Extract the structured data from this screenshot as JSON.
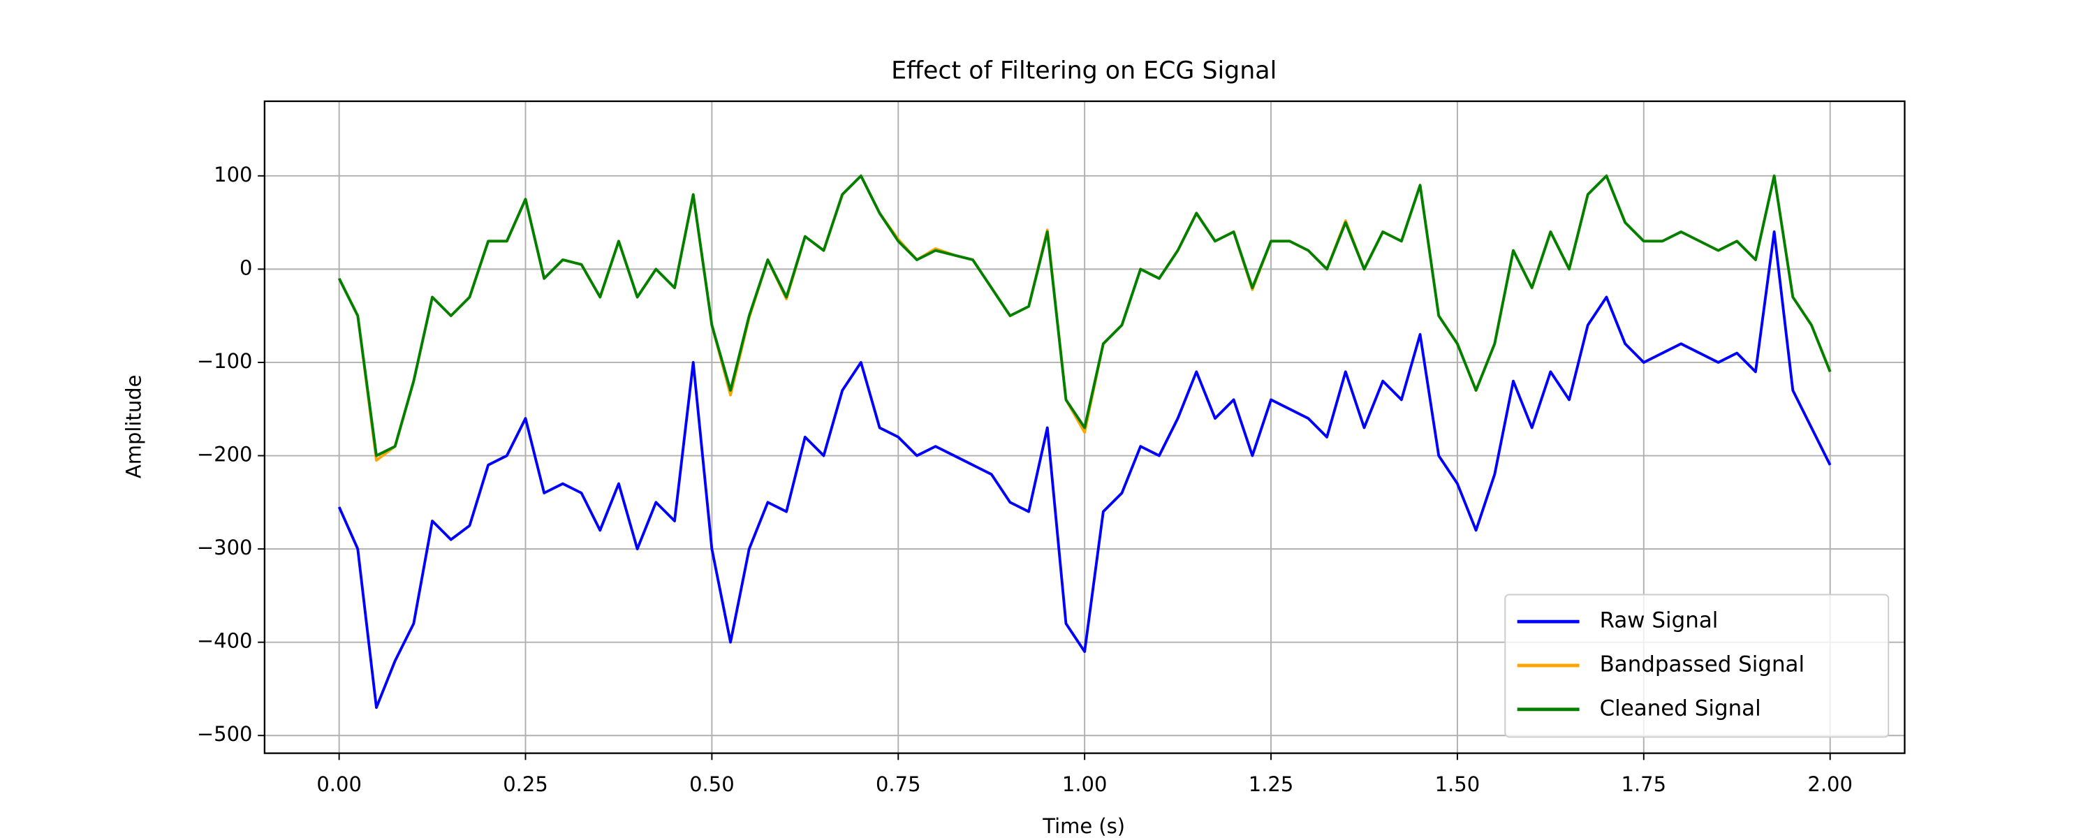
{
  "chart_data": {
    "type": "line",
    "title": "Effect of Filtering on ECG Signal",
    "x_label": "Time (s)",
    "y_label": "Amplitude",
    "x": [
      0,
      0.025,
      0.05,
      0.075,
      0.1,
      0.125,
      0.15,
      0.175,
      0.2,
      0.225,
      0.25,
      0.275,
      0.3,
      0.325,
      0.35,
      0.375,
      0.4,
      0.425,
      0.45,
      0.475,
      0.5,
      0.525,
      0.55,
      0.575,
      0.6,
      0.625,
      0.65,
      0.675,
      0.7,
      0.725,
      0.75,
      0.775,
      0.8,
      0.825,
      0.85,
      0.875,
      0.9,
      0.925,
      0.95,
      0.975,
      1.0,
      1.025,
      1.05,
      1.075,
      1.1,
      1.125,
      1.15,
      1.175,
      1.2,
      1.225,
      1.25,
      1.275,
      1.3,
      1.325,
      1.35,
      1.375,
      1.4,
      1.425,
      1.45,
      1.475,
      1.5,
      1.525,
      1.55,
      1.575,
      1.6,
      1.625,
      1.65,
      1.675,
      1.7,
      1.725,
      1.75,
      1.775,
      1.8,
      1.825,
      1.85,
      1.875,
      1.9,
      1.925,
      1.95,
      1.975,
      2.0
    ],
    "series": [
      {
        "name": "Raw Signal",
        "color": "#0000ff",
        "values": [
          -255,
          -300,
          -470,
          -420,
          -380,
          -270,
          -290,
          -275,
          -210,
          -200,
          -160,
          -240,
          -230,
          -240,
          -280,
          -230,
          -300,
          -250,
          -270,
          -100,
          -300,
          -400,
          -300,
          -250,
          -260,
          -180,
          -200,
          -130,
          -100,
          -170,
          -180,
          -200,
          -190,
          -200,
          -210,
          -220,
          -250,
          -260,
          -170,
          -380,
          -410,
          -260,
          -240,
          -190,
          -200,
          -160,
          -110,
          -160,
          -140,
          -200,
          -140,
          -150,
          -160,
          -180,
          -110,
          -170,
          -120,
          -140,
          -70,
          -200,
          -230,
          -280,
          -220,
          -120,
          -170,
          -110,
          -140,
          -60,
          -30,
          -80,
          -100,
          -90,
          -80,
          -90,
          -100,
          -90,
          -110,
          40,
          -130,
          -170,
          -210
        ]
      },
      {
        "name": "Bandpassed Signal",
        "color": "#ffa500",
        "values": [
          -10,
          -50,
          -205,
          -190,
          -120,
          -30,
          -50,
          -30,
          30,
          30,
          75,
          -10,
          10,
          5,
          -30,
          30,
          -30,
          0,
          -20,
          80,
          -60,
          -135,
          -52,
          10,
          -32,
          35,
          20,
          80,
          100,
          60,
          32,
          10,
          22,
          15,
          10,
          -20,
          -50,
          -40,
          42,
          -140,
          -175,
          -80,
          -60,
          0,
          -10,
          20,
          60,
          30,
          40,
          -22,
          30,
          30,
          20,
          0,
          52,
          0,
          40,
          30,
          90,
          -50,
          -80,
          -130,
          -80,
          20,
          -20,
          40,
          0,
          80,
          100,
          50,
          30,
          30,
          40,
          30,
          20,
          30,
          10,
          100,
          -30,
          -60,
          -110
        ]
      },
      {
        "name": "Cleaned Signal",
        "color": "#008000",
        "values": [
          -10,
          -50,
          -200,
          -190,
          -120,
          -30,
          -50,
          -30,
          30,
          30,
          75,
          -10,
          10,
          5,
          -30,
          30,
          -30,
          0,
          -20,
          80,
          -60,
          -130,
          -50,
          10,
          -30,
          35,
          20,
          80,
          100,
          60,
          30,
          10,
          20,
          15,
          10,
          -20,
          -50,
          -40,
          40,
          -140,
          -170,
          -80,
          -60,
          0,
          -10,
          20,
          60,
          30,
          40,
          -20,
          30,
          30,
          20,
          0,
          50,
          0,
          40,
          30,
          90,
          -50,
          -80,
          -130,
          -80,
          20,
          -20,
          40,
          0,
          80,
          100,
          50,
          30,
          30,
          40,
          30,
          20,
          30,
          10,
          100,
          -30,
          -60,
          -110
        ]
      }
    ],
    "xlim": [
      -0.1,
      2.1
    ],
    "ylim": [
      -519,
      180
    ],
    "xticks": [
      {
        "value": 0,
        "label": "0.00"
      },
      {
        "value": 0.25,
        "label": "0.25"
      },
      {
        "value": 0.5,
        "label": "0.50"
      },
      {
        "value": 0.75,
        "label": "0.75"
      },
      {
        "value": 1,
        "label": "1.00"
      },
      {
        "value": 1.25,
        "label": "1.25"
      },
      {
        "value": 1.5,
        "label": "1.50"
      },
      {
        "value": 1.75,
        "label": "1.75"
      },
      {
        "value": 2,
        "label": "2.00"
      }
    ],
    "yticks": [
      {
        "value": -500,
        "label": "−500"
      },
      {
        "value": -400,
        "label": "−400"
      },
      {
        "value": -300,
        "label": "−300"
      },
      {
        "value": -200,
        "label": "−200"
      },
      {
        "value": -100,
        "label": "−100"
      },
      0,
      100
    ],
    "grid": true,
    "legend": "lower right"
  }
}
